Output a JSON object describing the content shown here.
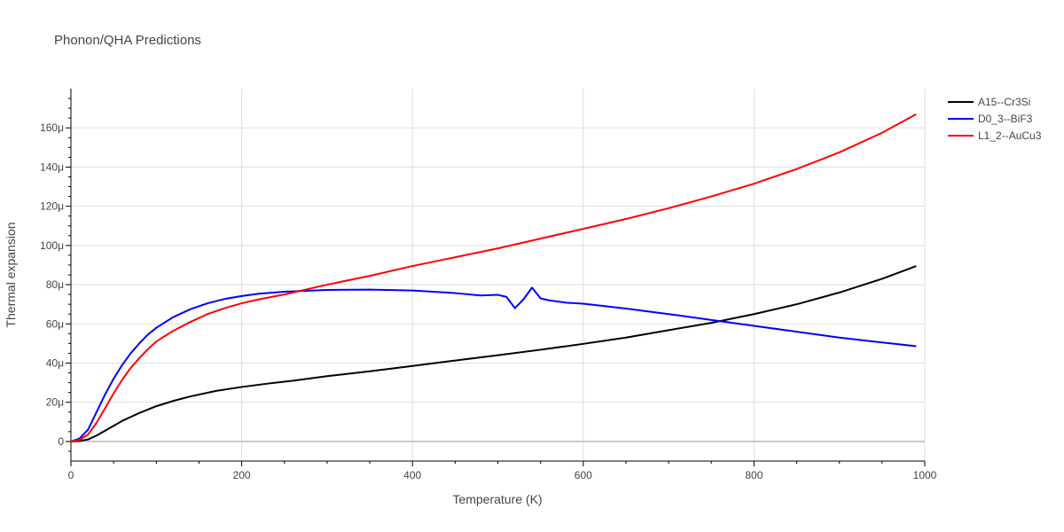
{
  "chart_data": {
    "type": "line",
    "title": "Phonon/QHA Predictions",
    "xlabel": "Temperature (K)",
    "ylabel": "Thermal expansion",
    "xlim": [
      0,
      1000
    ],
    "ylim": [
      -10,
      180
    ],
    "x_ticks": [
      0,
      200,
      400,
      600,
      800,
      1000
    ],
    "x_tick_labels": [
      "0",
      "200",
      "400",
      "600",
      "800",
      "1000"
    ],
    "y_ticks": [
      0,
      20,
      40,
      60,
      80,
      100,
      120,
      140,
      160
    ],
    "y_tick_labels": [
      "0",
      "20μ",
      "40μ",
      "60μ",
      "80μ",
      "100μ",
      "120μ",
      "140μ",
      "160μ"
    ],
    "grid": true,
    "legend_position": "top-right",
    "series": [
      {
        "name": "A15--Cr3Si",
        "color": "#000000",
        "x": [
          0,
          10,
          20,
          30,
          40,
          50,
          60,
          70,
          80,
          100,
          120,
          140,
          170,
          200,
          230,
          260,
          300,
          350,
          400,
          450,
          500,
          550,
          600,
          650,
          700,
          750,
          800,
          850,
          900,
          950,
          990
        ],
        "y": [
          0,
          0.3,
          1,
          3,
          5.5,
          8,
          10.5,
          12.5,
          14.5,
          18,
          20.7,
          23,
          25.8,
          27.8,
          29.5,
          31,
          33.3,
          35.8,
          38.5,
          41.3,
          44,
          46.8,
          49.8,
          53,
          56.8,
          60.5,
          65,
          70,
          76,
          83,
          89.5
        ]
      },
      {
        "name": "D0_3--BiF3",
        "color": "#0000ff",
        "x": [
          0,
          10,
          20,
          30,
          40,
          50,
          60,
          70,
          80,
          90,
          100,
          120,
          140,
          160,
          180,
          200,
          220,
          250,
          300,
          350,
          400,
          450,
          480,
          500,
          510,
          520,
          530,
          540,
          550,
          560,
          580,
          600,
          650,
          700,
          750,
          800,
          850,
          900,
          950,
          990
        ],
        "y": [
          0,
          1.5,
          6,
          15,
          24,
          32,
          39,
          45,
          50,
          54.5,
          58,
          63.5,
          67.5,
          70.5,
          72.7,
          74.2,
          75.4,
          76.4,
          77.3,
          77.5,
          77,
          75.7,
          74.5,
          74.8,
          73.8,
          68,
          72.5,
          78.5,
          73,
          72,
          70.8,
          70.3,
          67.8,
          65,
          62,
          59,
          56,
          53,
          50.5,
          48.6
        ]
      },
      {
        "name": "L1_2--AuCu3",
        "color": "#ff0000",
        "x": [
          0,
          10,
          20,
          30,
          40,
          50,
          60,
          70,
          80,
          90,
          100,
          120,
          140,
          160,
          180,
          200,
          220,
          250,
          300,
          350,
          400,
          450,
          500,
          550,
          600,
          650,
          700,
          750,
          800,
          850,
          900,
          950,
          990
        ],
        "y": [
          0,
          0.8,
          3.5,
          9.5,
          17,
          24.5,
          31.5,
          37.5,
          42.5,
          47,
          51,
          56.5,
          61,
          65,
          68,
          70.5,
          72.5,
          75,
          80,
          84.5,
          89.5,
          94,
          98.5,
          103.5,
          108.5,
          113.5,
          119,
          125,
          131.5,
          139,
          147.5,
          157.5,
          167
        ]
      }
    ]
  }
}
